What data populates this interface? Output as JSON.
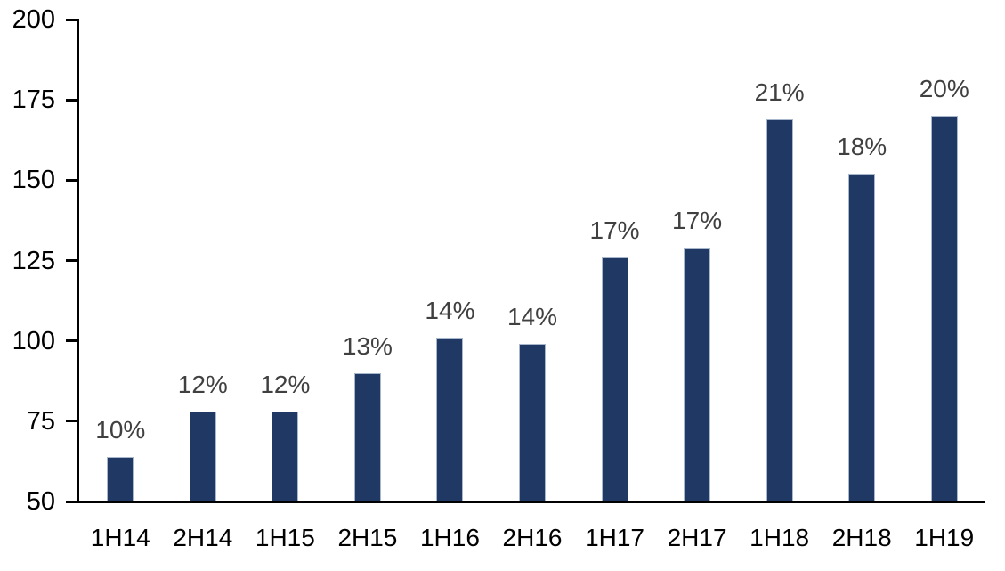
{
  "chart_data": {
    "type": "bar",
    "categories": [
      "1H14",
      "2H14",
      "1H15",
      "2H15",
      "1H16",
      "2H16",
      "1H17",
      "2H17",
      "1H18",
      "2H18",
      "1H19"
    ],
    "values": [
      64,
      78,
      78,
      90,
      101,
      99,
      126,
      129,
      169,
      152,
      170
    ],
    "bar_labels": [
      "10%",
      "12%",
      "12%",
      "13%",
      "14%",
      "14%",
      "17%",
      "17%",
      "21%",
      "18%",
      "20%"
    ],
    "title": "",
    "xlabel": "",
    "ylabel": "",
    "ylim": [
      50,
      200
    ],
    "yticks": [
      50,
      75,
      100,
      125,
      150,
      175,
      200
    ],
    "grid": false,
    "legend_position": "none",
    "colors": {
      "bar_fill": "#1F3864",
      "bar_border": "#A9B7CC",
      "axis": "#000000",
      "tick_label": "#000000",
      "data_label": "#404040",
      "background": "#FFFFFF"
    }
  }
}
